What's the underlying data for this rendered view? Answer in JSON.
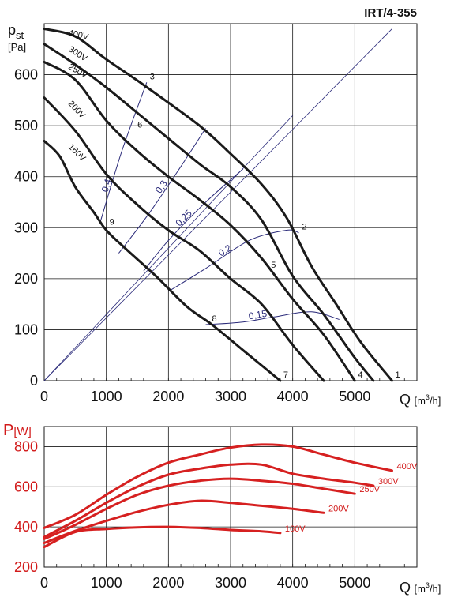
{
  "model": "IRT/4-355",
  "chart_data": [
    {
      "type": "line",
      "ylabel": "pst",
      "ylabel_main": "p",
      "ylabel_sub": "st",
      "yunit": "[Pa]",
      "xlabel": "Q",
      "xunit": "[m³/h]",
      "xunit_base": "[m",
      "xunit_sup": "3",
      "xunit_tail": "/h]",
      "xlim": [
        0,
        6000
      ],
      "ylim": [
        0,
        700
      ],
      "xticks": [
        0,
        1000,
        2000,
        3000,
        4000,
        5000
      ],
      "xtick_labels": [
        "0",
        "1000",
        "2000",
        "3000",
        "4000",
        "5000"
      ],
      "yticks": [
        0,
        100,
        200,
        300,
        400,
        500,
        600
      ],
      "ytick_labels": [
        "0",
        "100",
        "200",
        "300",
        "400",
        "500",
        "600"
      ],
      "grid": true,
      "series": [
        {
          "name": "400V",
          "x": [
            0,
            500,
            1000,
            1600,
            2500,
            3000,
            3500,
            3900,
            4300,
            4700,
            5100,
            5600
          ],
          "y": [
            690,
            675,
            630,
            580,
            500,
            445,
            385,
            320,
            225,
            150,
            75,
            0
          ]
        },
        {
          "name": "300V",
          "x": [
            0,
            500,
            1000,
            1500,
            2000,
            2500,
            3000,
            3500,
            4000,
            4500,
            5000,
            5300
          ],
          "y": [
            660,
            620,
            575,
            525,
            475,
            425,
            380,
            315,
            205,
            130,
            45,
            0
          ]
        },
        {
          "name": "250V",
          "x": [
            0,
            500,
            1000,
            1500,
            2000,
            2500,
            3000,
            3500,
            4000,
            4500,
            5000
          ],
          "y": [
            625,
            590,
            510,
            450,
            400,
            355,
            305,
            240,
            160,
            90,
            0
          ]
        },
        {
          "name": "200V",
          "x": [
            0,
            500,
            1000,
            1500,
            2000,
            2500,
            3000,
            3500,
            4000,
            4500
          ],
          "y": [
            555,
            490,
            405,
            345,
            295,
            255,
            200,
            150,
            70,
            0
          ]
        },
        {
          "name": "160V",
          "x": [
            0,
            250,
            500,
            800,
            1000,
            1300,
            1800,
            2300,
            2700,
            3200,
            3800
          ],
          "y": [
            470,
            440,
            380,
            330,
            295,
            260,
            205,
            145,
            110,
            60,
            0
          ]
        }
      ],
      "efficiency_lines": [
        {
          "label": "0,4",
          "x": [
            900,
            1250,
            1650
          ],
          "y": [
            310,
            450,
            585
          ]
        },
        {
          "label": "0,3",
          "x": [
            1200,
            1700,
            2200,
            2600
          ],
          "y": [
            250,
            330,
            420,
            495
          ]
        },
        {
          "label": "0,25",
          "x": [
            1600,
            2000,
            2600,
            3200
          ],
          "y": [
            215,
            275,
            350,
            415
          ]
        },
        {
          "label": "0,2",
          "x": [
            2000,
            2600,
            3300,
            3900,
            4100
          ],
          "y": [
            175,
            220,
            275,
            295,
            290
          ]
        },
        {
          "label": "0,15",
          "x": [
            2600,
            3200,
            3700,
            4300,
            4750
          ],
          "y": [
            110,
            115,
            125,
            135,
            120
          ]
        }
      ],
      "system_lines": [
        {
          "x": [
            0,
            5600
          ],
          "y": [
            0,
            690
          ]
        },
        {
          "x": [
            0,
            4000
          ],
          "y": [
            0,
            520
          ]
        }
      ],
      "operating_points": [
        {
          "label": "1",
          "x": 5600,
          "y": 0
        },
        {
          "label": "2",
          "x": 4100,
          "y": 290
        },
        {
          "label": "3",
          "x": 1650,
          "y": 585
        },
        {
          "label": "4",
          "x": 5000,
          "y": 0
        },
        {
          "label": "5",
          "x": 3600,
          "y": 215
        },
        {
          "label": "6",
          "x": 1450,
          "y": 490
        },
        {
          "label": "7",
          "x": 3800,
          "y": 0
        },
        {
          "label": "8",
          "x": 2650,
          "y": 110
        },
        {
          "label": "9",
          "x": 1000,
          "y": 300
        }
      ]
    },
    {
      "type": "line",
      "ylabel": "P[W]",
      "ylabel_main": "P",
      "ylabel_unit": "[W]",
      "xlabel": "Q",
      "xunit": "[m³/h]",
      "xlim": [
        0,
        6000
      ],
      "ylim": [
        200,
        900
      ],
      "xticks": [
        0,
        1000,
        2000,
        3000,
        4000,
        5000
      ],
      "xtick_labels": [
        "0",
        "1000",
        "2000",
        "3000",
        "4000",
        "5000"
      ],
      "yticks": [
        200,
        400,
        600,
        800
      ],
      "ytick_labels": [
        "200",
        "400",
        "600",
        "800"
      ],
      "grid": true,
      "series": [
        {
          "name": "400V",
          "x": [
            0,
            500,
            1000,
            1500,
            2000,
            2500,
            3000,
            3500,
            4000,
            4500,
            5000,
            5600
          ],
          "y": [
            395,
            460,
            560,
            650,
            720,
            760,
            795,
            810,
            800,
            760,
            720,
            680
          ]
        },
        {
          "name": "300V",
          "x": [
            0,
            500,
            1000,
            1500,
            2000,
            2500,
            3000,
            3500,
            4000,
            4500,
            5000,
            5300
          ],
          "y": [
            350,
            430,
            520,
            600,
            660,
            690,
            710,
            710,
            665,
            640,
            620,
            605
          ]
        },
        {
          "name": "250V",
          "x": [
            0,
            500,
            1000,
            1500,
            2000,
            2500,
            3000,
            3500,
            4000,
            4500,
            5000
          ],
          "y": [
            340,
            410,
            490,
            560,
            605,
            630,
            640,
            630,
            615,
            590,
            565
          ]
        },
        {
          "name": "200V",
          "x": [
            0,
            500,
            1000,
            1500,
            2000,
            2500,
            3000,
            3500,
            4000,
            4500
          ],
          "y": [
            320,
            380,
            430,
            475,
            510,
            530,
            520,
            505,
            490,
            470
          ]
        },
        {
          "name": "160V",
          "x": [
            0,
            500,
            1000,
            1500,
            2000,
            2500,
            3000,
            3500,
            3800
          ],
          "y": [
            300,
            375,
            390,
            398,
            400,
            395,
            385,
            378,
            370
          ]
        }
      ]
    }
  ]
}
